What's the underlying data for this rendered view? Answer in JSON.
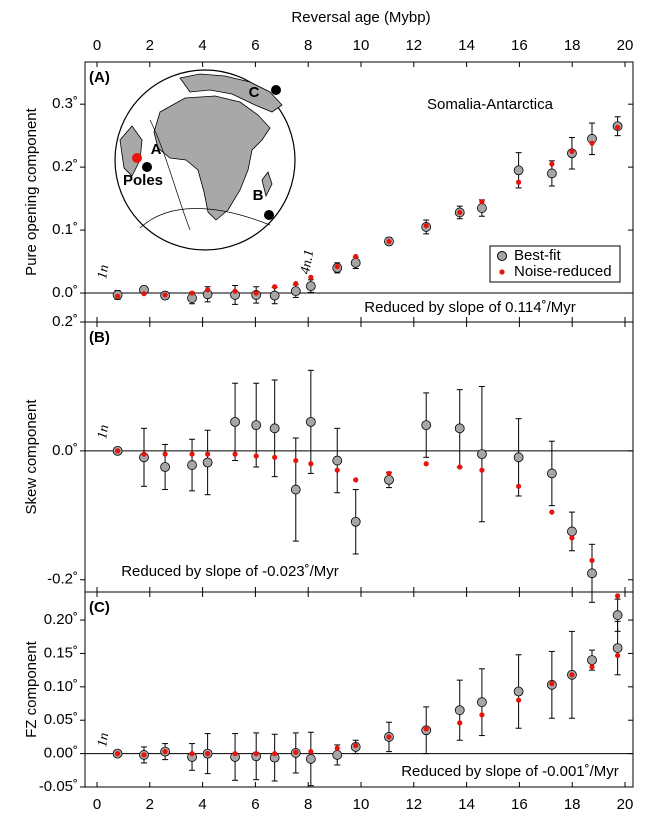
{
  "chart_data": [
    {
      "type": "scatter",
      "panel_label": "(A)",
      "xlabel": "Reversal age (Mybp)",
      "ylabel": "Pure opening component",
      "title": "Somalia-Antarctica",
      "annotation": "Reduced by slope of 0.114˚/Myr",
      "chron_labels": [
        "1n",
        "4n.1"
      ],
      "inset_labels": [
        "A",
        "B",
        "C",
        "Poles"
      ],
      "legend": "lower right",
      "hline": 0,
      "xlim": [
        0,
        20
      ],
      "xticks": [
        0,
        2,
        4,
        6,
        8,
        10,
        12,
        14,
        16,
        18,
        20
      ],
      "ylim": [
        -0.046,
        0.367
      ],
      "yticks": [
        {
          "value": 0,
          "label": "0.0˚"
        },
        {
          "value": 0.1,
          "label": "0.1˚"
        },
        {
          "value": 0.2,
          "label": "0.2˚"
        },
        {
          "value": 0.3,
          "label": "0.3˚"
        }
      ],
      "x": [
        0.78,
        1.78,
        2.58,
        3.6,
        4.19,
        5.23,
        6.03,
        6.73,
        7.53,
        8.1,
        9.1,
        9.8,
        11.06,
        12.47,
        13.74,
        14.58,
        15.97,
        17.23,
        17.99,
        18.75,
        19.72
      ],
      "series": [
        {
          "name": "Best-fit",
          "color": "#a6a6a6",
          "values": [
            -0.003,
            0.005,
            -0.004,
            -0.008,
            -0.002,
            -0.003,
            -0.003,
            -0.004,
            0.003,
            0.011,
            0.04,
            0.048,
            0.082,
            0.105,
            0.128,
            0.135,
            0.195,
            0.19,
            0.222,
            0.245,
            0.265
          ],
          "errors": [
            0.007,
            0.006,
            0.006,
            0.009,
            0.012,
            0.015,
            0.013,
            0.013,
            0.01,
            0.01,
            0.008,
            0.009,
            0.006,
            0.011,
            0.01,
            0.013,
            0.028,
            0.02,
            0.025,
            0.025,
            0.015
          ]
        },
        {
          "name": "Noise-reduced",
          "color": "#e8140c",
          "values": [
            -0.005,
            -0.001,
            -0.003,
            0.0,
            0.005,
            0.003,
            0.0,
            0.01,
            0.015,
            0.025,
            0.042,
            0.058,
            0.082,
            0.107,
            0.128,
            0.145,
            0.176,
            0.205,
            0.225,
            0.238,
            0.263
          ]
        }
      ]
    },
    {
      "type": "scatter",
      "panel_label": "(B)",
      "ylabel": "Skew component",
      "annotation": "Reduced by slope of -0.023˚/Myr",
      "chron_labels": [
        "1n"
      ],
      "hline": 0,
      "xlim": [
        0,
        20
      ],
      "xticks": [
        0,
        2,
        4,
        6,
        8,
        10,
        12,
        14,
        16,
        18,
        20
      ],
      "ylim": [
        -0.219,
        0.2
      ],
      "yticks": [
        {
          "value": -0.2,
          "label": "-0.2˚"
        },
        {
          "value": 0,
          "label": "0.0˚"
        },
        {
          "value": 0.2,
          "label": "0.2˚"
        }
      ],
      "x": [
        0.78,
        1.78,
        2.58,
        3.6,
        4.19,
        5.23,
        6.03,
        6.73,
        7.53,
        8.1,
        9.1,
        9.8,
        11.06,
        12.47,
        13.74,
        14.58,
        15.97,
        17.23,
        17.99,
        18.75,
        19.72
      ],
      "series": [
        {
          "color": "#a6a6a6",
          "values": [
            0.0,
            -0.01,
            -0.025,
            -0.022,
            -0.018,
            0.045,
            0.04,
            0.035,
            -0.06,
            0.045,
            -0.015,
            -0.11,
            -0.045,
            0.04,
            0.035,
            -0.005,
            -0.01,
            -0.035,
            -0.125,
            -0.19,
            -0.255
          ],
          "errors": [
            0.003,
            0.045,
            0.035,
            0.04,
            0.05,
            0.06,
            0.065,
            0.075,
            0.08,
            0.08,
            0.05,
            0.05,
            0.012,
            0.05,
            0.06,
            0.105,
            0.06,
            0.05,
            0.03,
            0.045,
            0.025
          ]
        },
        {
          "color": "#e8140c",
          "values": [
            0.0,
            -0.005,
            -0.005,
            -0.005,
            -0.005,
            -0.005,
            -0.008,
            -0.01,
            -0.015,
            -0.02,
            -0.03,
            -0.045,
            -0.035,
            -0.02,
            -0.025,
            -0.03,
            -0.055,
            -0.095,
            -0.135,
            -0.17,
            -0.225
          ]
        }
      ]
    },
    {
      "type": "scatter",
      "panel_label": "(C)",
      "ylabel": "FZ component",
      "annotation": "Reduced by slope of -0.001˚/Myr",
      "chron_labels": [
        "1n"
      ],
      "hline": 0,
      "xlim": [
        0,
        20
      ],
      "xticks": [
        0,
        2,
        4,
        6,
        8,
        10,
        12,
        14,
        16,
        18,
        20
      ],
      "ylim": [
        -0.05,
        0.242
      ],
      "yticks": [
        {
          "value": -0.05,
          "label": "-0.05˚"
        },
        {
          "value": 0,
          "label": "0.00˚"
        },
        {
          "value": 0.05,
          "label": "0.05˚"
        },
        {
          "value": 0.1,
          "label": "0.10˚"
        },
        {
          "value": 0.15,
          "label": "0.15˚"
        },
        {
          "value": 0.2,
          "label": "0.20˚"
        }
      ],
      "x": [
        0.78,
        1.78,
        2.58,
        3.6,
        4.19,
        5.23,
        6.03,
        6.73,
        7.53,
        8.1,
        9.1,
        9.8,
        11.06,
        12.47,
        13.74,
        14.58,
        15.97,
        17.23,
        17.99,
        18.75,
        19.72
      ],
      "series": [
        {
          "color": "#a6a6a6",
          "values": [
            0.0,
            -0.002,
            0.003,
            -0.005,
            0.0,
            -0.005,
            -0.004,
            -0.006,
            0.001,
            -0.008,
            -0.002,
            0.01,
            0.025,
            0.035,
            0.065,
            0.077,
            0.093,
            0.103,
            0.118,
            0.14,
            0.158
          ],
          "errors": [
            0.004,
            0.012,
            0.012,
            0.02,
            0.03,
            0.035,
            0.035,
            0.035,
            0.03,
            0.04,
            0.015,
            0.01,
            0.022,
            0.035,
            0.045,
            0.05,
            0.055,
            0.05,
            0.065,
            0.015,
            0.04
          ]
        },
        {
          "color": "#e8140c",
          "values": [
            0.0,
            -0.002,
            0.003,
            0.0,
            0.0,
            0.0,
            0.0,
            0.0,
            0.002,
            0.003,
            0.008,
            0.012,
            0.025,
            0.037,
            0.046,
            0.058,
            0.08,
            0.105,
            0.118,
            0.13,
            0.147
          ]
        }
      ]
    }
  ]
}
